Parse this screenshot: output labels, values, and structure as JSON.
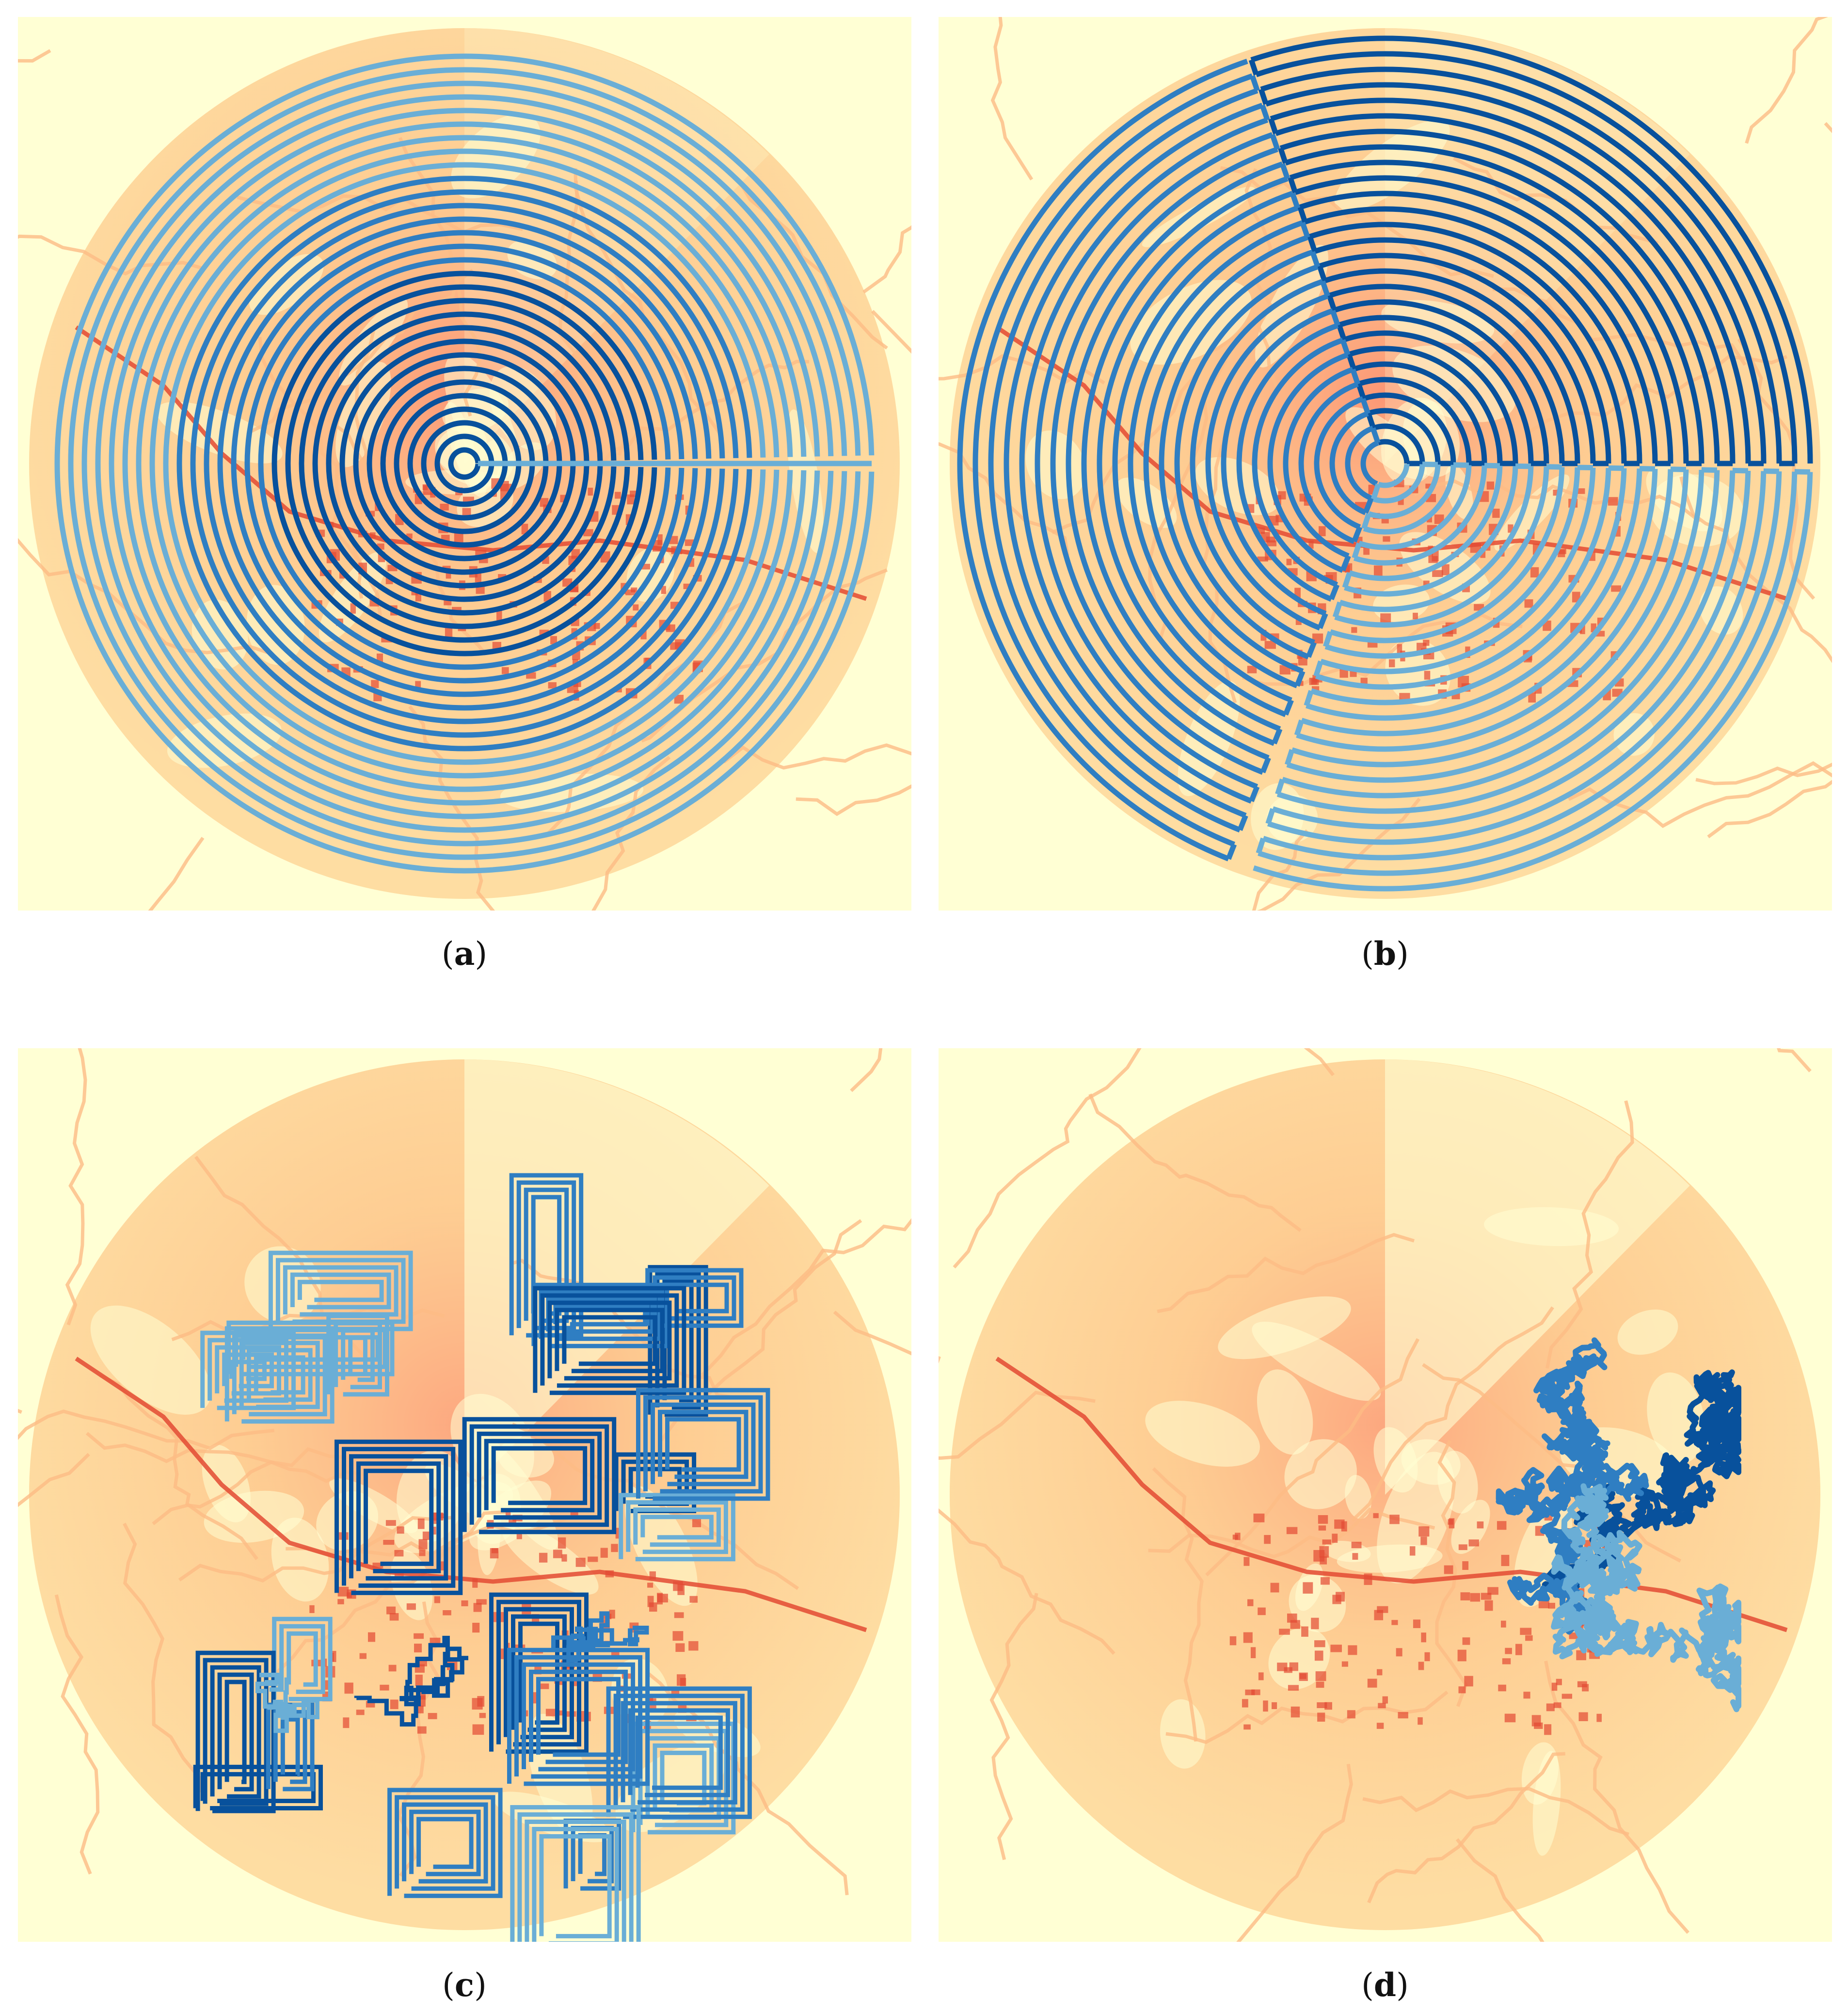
{
  "figure": {
    "panels": [
      {
        "id": "a",
        "label": "a",
        "path_type": "spiral"
      },
      {
        "id": "b",
        "label": "b",
        "path_type": "sector-spiral"
      },
      {
        "id": "c",
        "label": "c",
        "path_type": "rectilinear-search"
      },
      {
        "id": "d",
        "label": "d",
        "path_type": "random-walk"
      }
    ]
  },
  "colors": {
    "background": "#ffffd4",
    "map_light": "#fee8a8",
    "map_mid": "#fdd49e",
    "map_orange": "#fdbb84",
    "map_salmon": "#fc9272",
    "map_red": "#e34a33",
    "path_light": "#6aaed6",
    "path_mid": "#2f7ec2",
    "path_dark": "#08519c"
  }
}
